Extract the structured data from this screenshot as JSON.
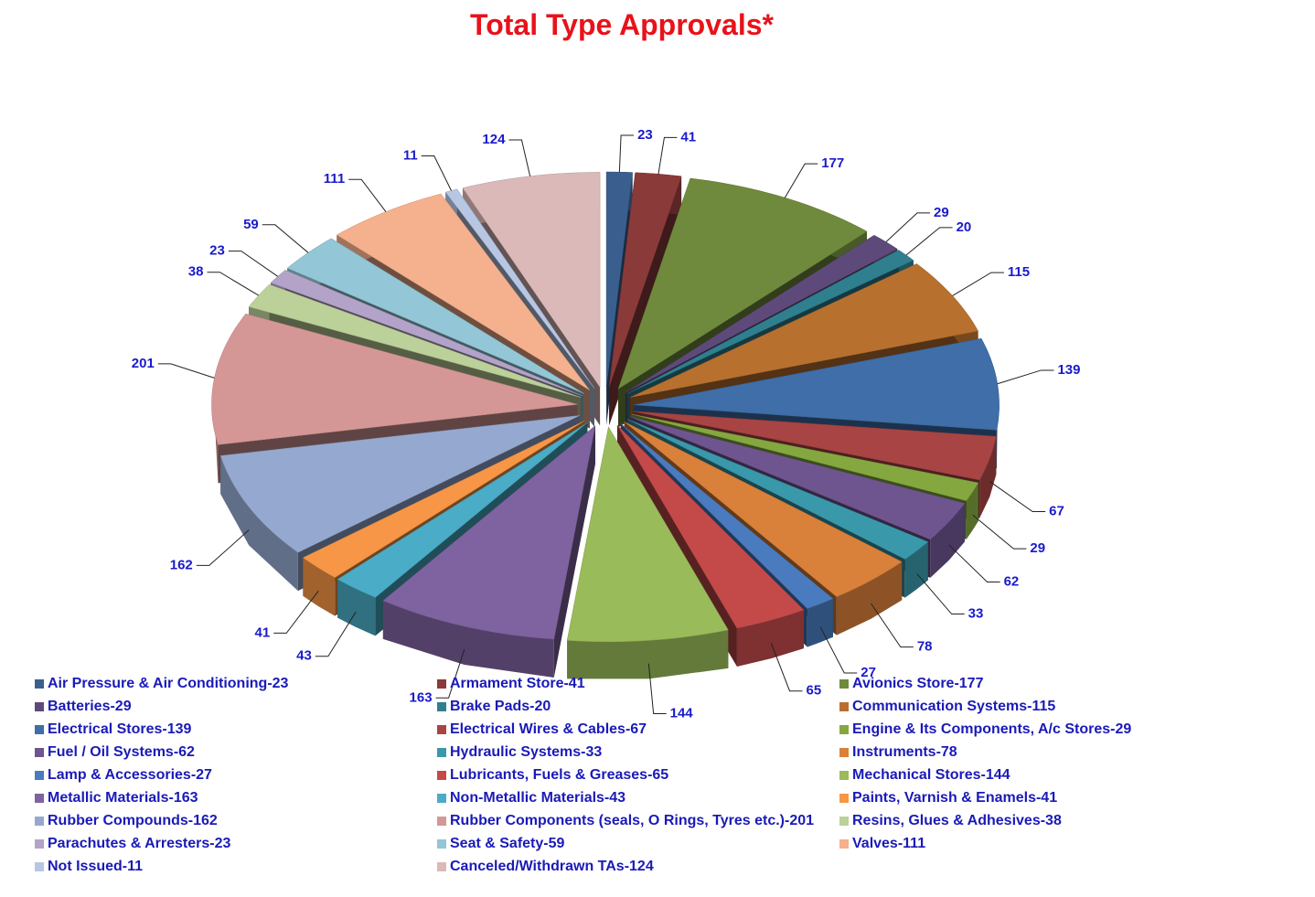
{
  "chart_data": {
    "type": "pie",
    "title": "Total Type Approvals*",
    "categories": [
      "Air Pressure & Air Conditioning-23",
      "Armament Store-41",
      "Avionics Store-177",
      "Batteries-29",
      "Brake Pads-20",
      "Communication Systems-115",
      "Electrical Stores-139",
      "Electrical Wires & Cables-67",
      "Engine & Its Components, A/c Stores-29",
      "Fuel / Oil Systems-62",
      "Hydraulic Systems-33",
      "Instruments-78",
      "Lamp & Accessories-27",
      "Lubricants, Fuels & Greases-65",
      "Mechanical Stores-144",
      "Metallic Materials-163",
      "Non-Metallic Materials-43",
      "Paints, Varnish & Enamels-41",
      "Rubber Compounds-162",
      "Rubber Components (seals, O Rings, Tyres etc.)-201",
      "Resins, Glues & Adhesives-38",
      "Parachutes & Arresters-23",
      "Seat & Safety-59",
      "Valves-111",
      "Not Issued-11",
      "Canceled/Withdrawn TAs-124"
    ],
    "values": [
      23,
      41,
      177,
      29,
      20,
      115,
      139,
      67,
      29,
      62,
      33,
      78,
      27,
      65,
      144,
      163,
      43,
      41,
      162,
      201,
      38,
      23,
      59,
      111,
      11,
      124
    ],
    "colors": [
      "#3a5f8f",
      "#8b3a3a",
      "#6f8a3c",
      "#5e4a7a",
      "#2f7f8f",
      "#b8702f",
      "#3f6ea8",
      "#a84444",
      "#84a83f",
      "#6f5590",
      "#3a98ab",
      "#d9803a",
      "#4a7bbf",
      "#c44a4a",
      "#9abb59",
      "#7f63a0",
      "#4aacc6",
      "#f79646",
      "#95a9d0",
      "#d59795",
      "#bcd09a",
      "#b3a3c8",
      "#93c6d6",
      "#f5b08d",
      "#b7c6e3",
      "#dbb9b9"
    ],
    "legend": "bottom"
  }
}
